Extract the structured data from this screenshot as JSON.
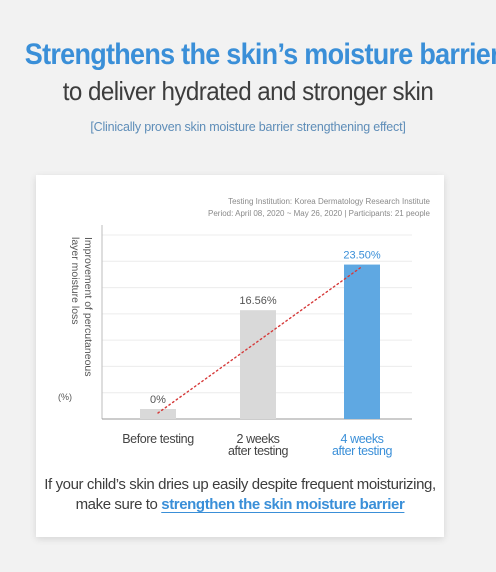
{
  "headline": {
    "line1": "Strengthens the skin’s moisture barrier",
    "line2": "to deliver hydrated and stronger skin",
    "subtitle": "[Clinically proven skin moisture barrier strengthening effect]"
  },
  "study": {
    "institution": "Testing Institution: Korea Dermatology Research Institute",
    "period": "Period: April 08, 2020 ~ May 26, 2020 | Participants: 21 people"
  },
  "footer": {
    "line1": "If your child’s skin dries up easily despite frequent moisturizing,",
    "line2_prefix": "make sure to ",
    "line2_emphasis": "strengthen the skin moisture barrier"
  },
  "colors": {
    "accent": "#3a8fd8",
    "bar_gray": "#d9d9d9",
    "bar_highlight": "#5fa8e2",
    "trend_line": "#d63a3a"
  },
  "chart_data": {
    "type": "bar",
    "categories": [
      {
        "line1": "Before testing",
        "line2": ""
      },
      {
        "line1": "2 weeks",
        "line2": "after testing"
      },
      {
        "line1": "4 weeks",
        "line2": "after testing"
      }
    ],
    "values": [
      0,
      16.56,
      23.5
    ],
    "value_labels": [
      "0%",
      "16.56%",
      "23.50%"
    ],
    "highlight_index": 2,
    "ylabel_line1": "Improvement of percutaneous",
    "ylabel_line2": "layer moisture loss",
    "yunit": "(%)",
    "ylim": [
      0,
      28
    ],
    "grid": true,
    "trend_line": {
      "style": "dotted",
      "from_index": 0,
      "to_index": 2
    }
  }
}
